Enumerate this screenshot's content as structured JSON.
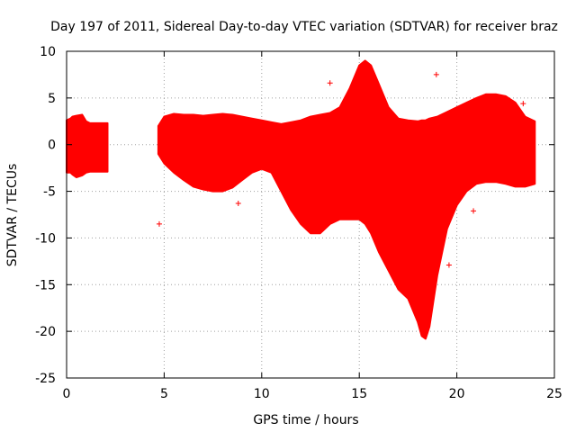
{
  "chart_data": {
    "type": "scatter",
    "title": "Day 197 of 2011, Sidereal Day-to-day VTEC variation (SDTVAR) for receiver braz",
    "xlabel": "GPS time / hours",
    "ylabel": "SDTVAR / TECUs",
    "xlim": [
      0,
      25
    ],
    "ylim": [
      -25,
      10
    ],
    "xticks": [
      "0",
      "5",
      "10",
      "15",
      "20",
      "25"
    ],
    "yticks": [
      "10",
      "5",
      "0",
      "-5",
      "-10",
      "-15",
      "-20",
      "-25"
    ],
    "grid": true,
    "color": "#ff0000",
    "series": [
      {
        "name": "SDTVAR envelope",
        "kind": "band",
        "segments": [
          {
            "x": [
              0.0,
              0.2,
              0.3,
              0.5,
              0.8,
              1.0,
              1.2,
              1.5,
              2.1
            ],
            "upper": [
              2.6,
              2.8,
              3.0,
              3.1,
              3.2,
              2.5,
              2.3,
              2.3,
              2.3
            ],
            "lower": [
              -3.0,
              -3.0,
              -3.2,
              -3.5,
              -3.3,
              -3.0,
              -2.9,
              -2.9,
              -2.9
            ]
          },
          {
            "x": [
              4.7,
              5.0,
              5.5,
              6.0,
              6.5,
              7.0,
              7.5,
              8.0,
              8.5,
              9.0,
              9.5,
              10.0,
              10.5,
              11.0,
              11.5,
              12.0,
              12.5,
              13.0,
              13.5,
              14.0,
              14.5,
              15.0,
              15.3,
              15.6,
              16.0,
              16.5,
              17.0,
              17.5,
              18.0,
              18.2,
              18.4,
              18.6,
              19.0,
              19.5,
              20.0,
              20.5,
              21.0,
              21.5,
              22.0,
              22.5,
              23.0,
              23.5,
              24.0
            ],
            "upper": [
              2.0,
              3.0,
              3.3,
              3.2,
              3.2,
              3.1,
              3.2,
              3.3,
              3.2,
              3.0,
              2.8,
              2.6,
              2.4,
              2.2,
              2.4,
              2.6,
              3.0,
              3.2,
              3.4,
              4.0,
              6.0,
              8.5,
              9.0,
              8.5,
              6.5,
              4.0,
              2.8,
              2.6,
              2.5,
              2.6,
              2.6,
              2.8,
              3.0,
              3.5,
              4.0,
              4.5,
              5.0,
              5.4,
              5.4,
              5.2,
              4.5,
              3.0,
              2.5
            ],
            "lower": [
              -1.0,
              -2.0,
              -3.0,
              -3.8,
              -4.5,
              -4.8,
              -5.0,
              -5.0,
              -4.6,
              -3.8,
              -3.0,
              -2.6,
              -3.0,
              -5.0,
              -7.0,
              -8.5,
              -9.5,
              -9.5,
              -8.5,
              -8.0,
              -8.0,
              -8.0,
              -8.5,
              -9.5,
              -11.5,
              -13.5,
              -15.5,
              -16.5,
              -19.0,
              -20.5,
              -20.8,
              -19.5,
              -14.0,
              -9.0,
              -6.5,
              -5.0,
              -4.2,
              -4.0,
              -4.0,
              -4.2,
              -4.5,
              -4.5,
              -4.2
            ]
          }
        ]
      },
      {
        "name": "outliers",
        "kind": "points",
        "x": [
          4.75,
          8.8,
          13.5,
          18.95,
          19.6,
          20.85,
          23.4
        ],
        "y": [
          -8.5,
          -6.3,
          6.6,
          7.5,
          -12.9,
          -7.1,
          4.4
        ]
      }
    ]
  }
}
